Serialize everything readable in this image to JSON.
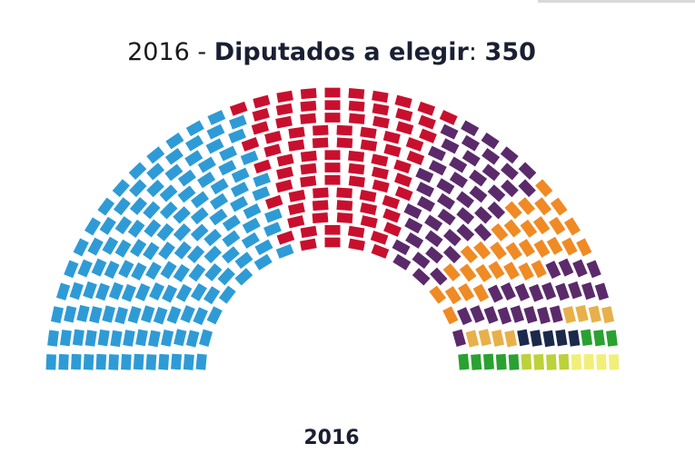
{
  "title": {
    "year": "2016",
    "separator": " - ",
    "label": "Diputados a elegir",
    "colon": ":",
    "total": "350"
  },
  "footer": {
    "year": "2016"
  },
  "chart_data": {
    "type": "parliament",
    "total_seats": 350,
    "series": [
      {
        "color": "#2e9bd6",
        "values": [
          137
        ]
      },
      {
        "color": "#c8102e",
        "values": [
          85
        ]
      },
      {
        "color": "#5b2a6b",
        "values": [
          45
        ]
      },
      {
        "color": "#f08a24",
        "values": [
          32
        ]
      },
      {
        "color": "#5b2a6b",
        "values": [
          22
        ]
      },
      {
        "color": "#e8b04a",
        "values": [
          8
        ]
      },
      {
        "color": "#1b2a4a",
        "values": [
          5
        ]
      },
      {
        "color": "#2aa130",
        "values": [
          8
        ]
      },
      {
        "color": "#bcd13a",
        "values": [
          4
        ]
      },
      {
        "color": "#f2ee7a",
        "values": [
          4
        ]
      }
    ]
  }
}
